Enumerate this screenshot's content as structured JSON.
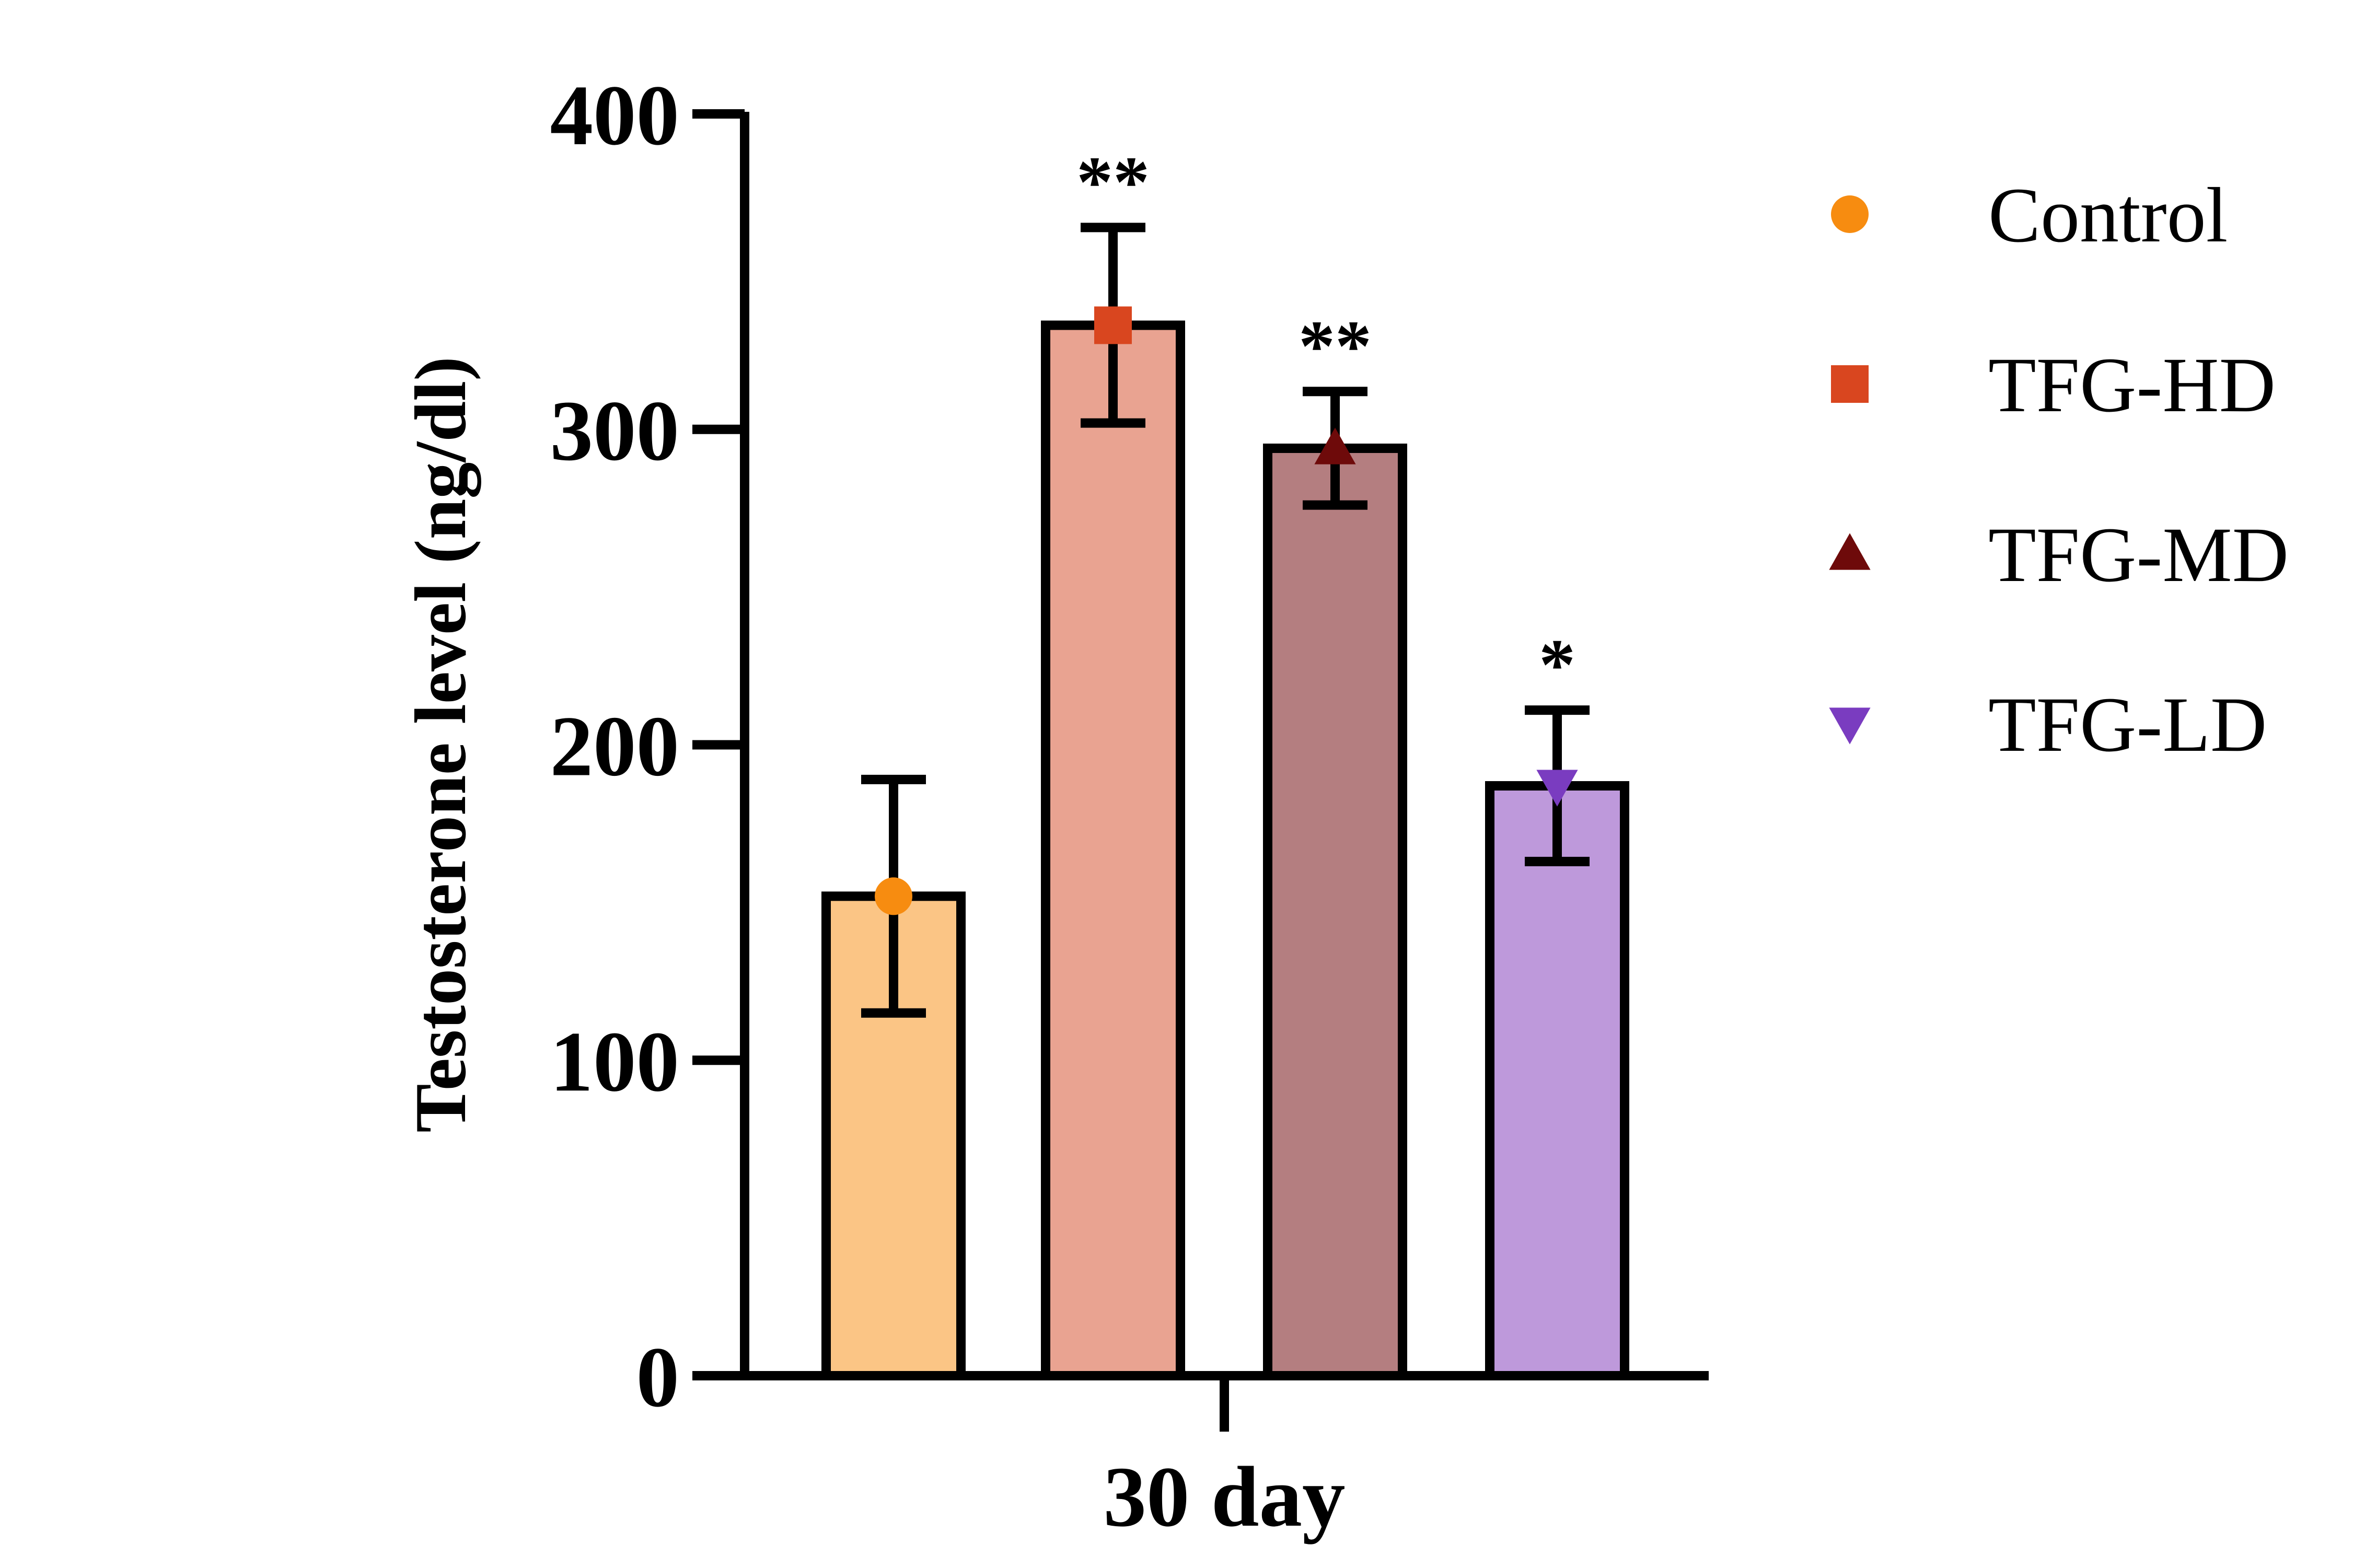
{
  "chart_data": {
    "type": "bar",
    "categories": [
      "30 day"
    ],
    "series": [
      {
        "name": "Control",
        "value": 152,
        "error": 37,
        "significance": "",
        "color": "#FBC585",
        "marker_color": "#F78C10",
        "marker": "circle"
      },
      {
        "name": "TFG-HD",
        "value": 333,
        "error": 31,
        "significance": "**",
        "color": "#E9A391",
        "marker_color": "#D9461F",
        "marker": "square"
      },
      {
        "name": "TFG-MD",
        "value": 294,
        "error": 18,
        "significance": "**",
        "color": "#B47E80",
        "marker_color": "#6E0A0A",
        "marker": "triangle-up"
      },
      {
        "name": "TFG-LD",
        "value": 187,
        "error": 24,
        "significance": "*",
        "color": "#BE99DB",
        "marker_color": "#7A3CC0",
        "marker": "triangle-down"
      }
    ],
    "ylabel": "Testosterone level (ng/dl)",
    "xlabel": "",
    "ylim": [
      0,
      400
    ],
    "yticks": [
      "0",
      "100",
      "200",
      "300",
      "400"
    ],
    "legend_position": "right",
    "grid": false
  }
}
